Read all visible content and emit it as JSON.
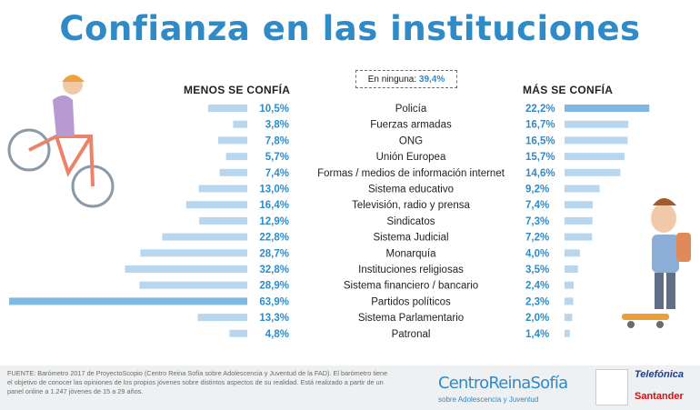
{
  "title": "Confianza en las instituciones",
  "note": {
    "label": "En ninguna:",
    "value": "39,4%"
  },
  "headers": {
    "left": "MENOS SE CONFÍA",
    "right": "MÁS SE CONFÍA"
  },
  "source": "FUENTE: Barómetro 2017 de ProyectoScopio (Centro Reina Sofía sobre Adolescencia y Juventud de la FAD). El barómetro tiene el objetivo de conocer las opiniones de los propios jóvenes sobre distintos aspectos de su realidad. Está realizado a partir de un panel online a 1.247 jóvenes de 15 a 29 años.",
  "logos": {
    "crs_name": "CentroReinaSofía",
    "crs_sub": "sobre Adolescencia y Juventud",
    "telefonica": "Telefónica",
    "santander": "Santander"
  },
  "colors": {
    "accent": "#2f8bc8",
    "bar": "#b8d7ee",
    "bar_highlight": "#7fb8e2"
  },
  "chart_data": {
    "type": "bar",
    "categories": [
      "Policía",
      "Fuerzas armadas",
      "ONG",
      "Unión Europea",
      "Formas / medios de información internet",
      "Sistema educativo",
      "Televisión, radio y prensa",
      "Sindicatos",
      "Sistema Judicial",
      "Monarquía",
      "Instituciones religiosas",
      "Sistema financiero / bancario",
      "Partidos políticos",
      "Sistema Parlamentario",
      "Patronal"
    ],
    "series": [
      {
        "name": "MENOS SE CONFÍA",
        "values": [
          10.5,
          3.8,
          7.8,
          5.7,
          7.4,
          13.0,
          16.4,
          12.9,
          22.8,
          28.7,
          32.8,
          28.9,
          63.9,
          13.3,
          4.8
        ],
        "labels": [
          "10,5%",
          "3,8%",
          "7,8%",
          "5,7%",
          "7,4%",
          "13,0%",
          "16,4%",
          "12,9%",
          "22,8%",
          "28,7%",
          "32,8%",
          "28,9%",
          "63,9%",
          "13,3%",
          "4,8%"
        ]
      },
      {
        "name": "MÁS SE CONFÍA",
        "values": [
          22.2,
          16.7,
          16.5,
          15.7,
          14.6,
          9.2,
          7.4,
          7.3,
          7.2,
          4.0,
          3.5,
          2.4,
          2.3,
          2.0,
          1.4
        ],
        "labels": [
          "22,2%",
          "16,7%",
          "16,5%",
          "15,7%",
          "14,6%",
          "9,2%",
          "7,4%",
          "7,3%",
          "7,2%",
          "4,0%",
          "3,5%",
          "2,4%",
          "2,3%",
          "2,0%",
          "1,4%"
        ]
      }
    ],
    "highlight": {
      "left": "Partidos políticos",
      "right": "Policía"
    }
  }
}
